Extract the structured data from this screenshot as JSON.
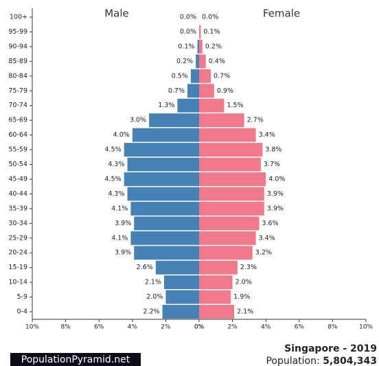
{
  "chart_data": {
    "type": "pyramid",
    "categories": [
      "100+",
      "95-99",
      "90-94",
      "85-89",
      "80-84",
      "75-79",
      "70-74",
      "65-69",
      "60-64",
      "55-59",
      "50-54",
      "45-49",
      "40-44",
      "35-39",
      "30-34",
      "25-29",
      "20-24",
      "15-19",
      "10-14",
      "5-9",
      "0-4"
    ],
    "series": [
      {
        "name": "Male",
        "color": "#4682b4",
        "values": [
          0.0,
          0.0,
          0.1,
          0.2,
          0.5,
          0.7,
          1.3,
          3.0,
          4.0,
          4.5,
          4.3,
          4.5,
          4.3,
          4.1,
          3.9,
          4.1,
          3.9,
          2.6,
          2.1,
          2.0,
          2.2
        ],
        "value_labels": [
          "0.0%",
          "0.0%",
          "0.1%",
          "0.2%",
          "0.5%",
          "0.7%",
          "1.3%",
          "3.0%",
          "4.0%",
          "4.5%",
          "4.3%",
          "4.5%",
          "4.3%",
          "4.1%",
          "3.9%",
          "4.1%",
          "3.9%",
          "2.6%",
          "2.1%",
          "2.0%",
          "2.2%"
        ]
      },
      {
        "name": "Female",
        "color": "#f07a8a",
        "values": [
          0.0,
          0.1,
          0.2,
          0.4,
          0.7,
          0.9,
          1.5,
          2.7,
          3.4,
          3.8,
          3.7,
          4.0,
          3.9,
          3.9,
          3.6,
          3.4,
          3.2,
          2.3,
          2.0,
          1.9,
          2.1
        ],
        "value_labels": [
          "0.0%",
          "0.1%",
          "0.2%",
          "0.4%",
          "0.7%",
          "0.9%",
          "1.5%",
          "2.7%",
          "3.4%",
          "3.8%",
          "3.7%",
          "4.0%",
          "3.9%",
          "3.9%",
          "3.6%",
          "3.4%",
          "3.2%",
          "2.3%",
          "2.0%",
          "1.9%",
          "2.1%"
        ]
      }
    ],
    "xlim": [
      0,
      10
    ],
    "xticks": [
      {
        "value": 0,
        "label": "0%"
      },
      {
        "value": 2,
        "label": "2%"
      },
      {
        "value": 4,
        "label": "4%"
      },
      {
        "value": 6,
        "label": "6%"
      },
      {
        "value": 8,
        "label": "8%"
      },
      {
        "value": 10,
        "label": "10%"
      }
    ],
    "title": "Singapore - 2019",
    "population_label": "Population:",
    "population": "5,804,343",
    "source": "PopulationPyramid.net"
  }
}
